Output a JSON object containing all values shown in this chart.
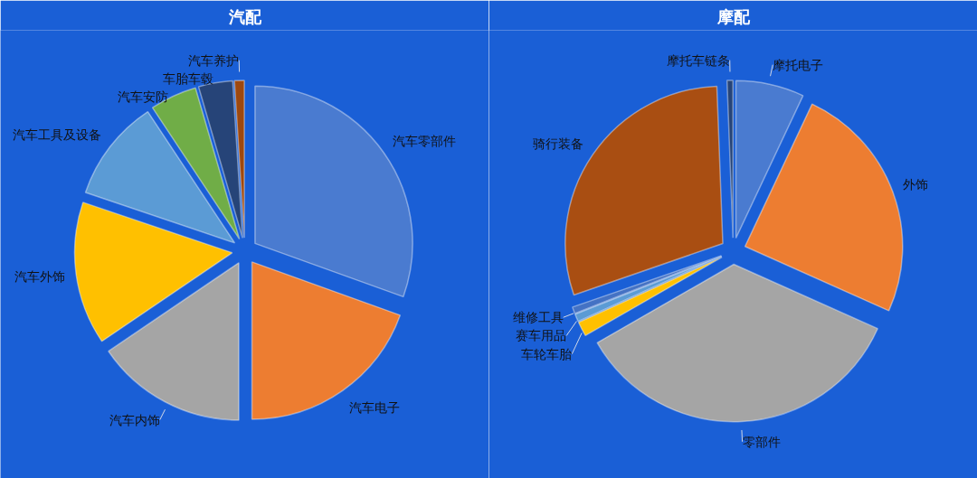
{
  "chart_data": [
    {
      "type": "pie",
      "title": "汽配",
      "categories": [
        "汽车零部件",
        "汽车电子",
        "汽车内饰",
        "汽车外饰",
        "汽车工具及设备",
        "汽车安防",
        "车胎车毂",
        "汽车养护"
      ],
      "values": [
        30.5,
        19.5,
        15.5,
        14.7,
        10.5,
        4.8,
        3.5,
        1.0
      ],
      "colors": [
        "#4a7bd0",
        "#ed7d31",
        "#a5a5a5",
        "#ffc000",
        "#5b9bd5",
        "#70ad47",
        "#264478",
        "#9e480e"
      ]
    },
    {
      "type": "pie",
      "title": "摩配",
      "categories": [
        "摩托电子",
        "外饰",
        "零部件",
        "车轮车胎",
        "赛车用品",
        "维修工具",
        "骑行装备",
        "摩托车链条"
      ],
      "values": [
        7.0,
        24.7,
        35.0,
        1.5,
        0.8,
        0.7,
        29.7,
        0.6
      ],
      "colors": [
        "#4a7bd0",
        "#ed7d31",
        "#a5a5a5",
        "#ffc000",
        "#5b9bd5",
        "#4472c4",
        "#a94e12",
        "#264478"
      ]
    }
  ]
}
